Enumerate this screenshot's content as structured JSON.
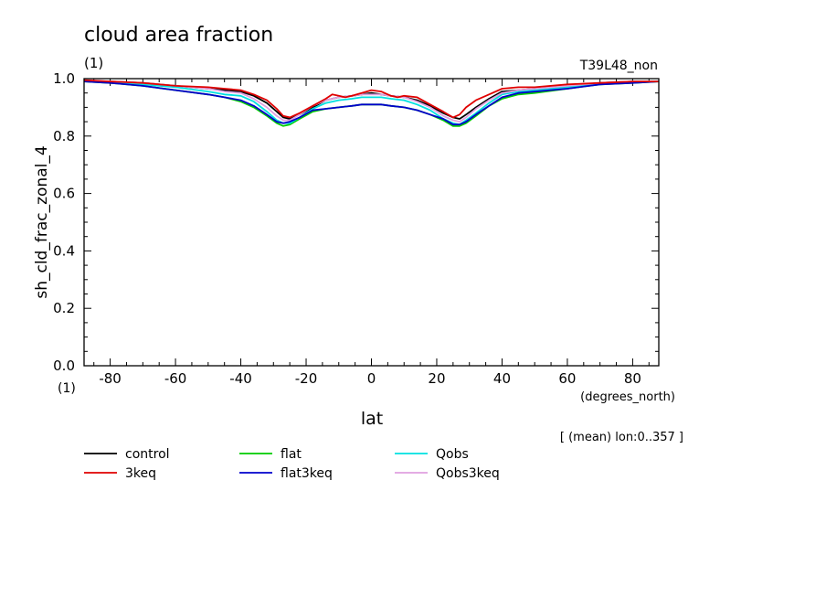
{
  "chart_data": {
    "type": "line",
    "title": "cloud area fraction",
    "title_units": "(1)",
    "run_label": "T39L48_non",
    "ylabel": "sh_cld_frac_zonal_4",
    "y_units": "(1)",
    "xlabel": "lat",
    "x_units": "(degrees_north)",
    "note": "[ (mean) lon:0..357 ]",
    "xlim": [
      -88,
      88
    ],
    "ylim": [
      0.0,
      1.0
    ],
    "x_ticks": [
      "-80",
      "-60",
      "-40",
      "-20",
      "0",
      "20",
      "40",
      "60",
      "80"
    ],
    "y_ticks": [
      "0.0",
      "0.2",
      "0.4",
      "0.6",
      "0.8",
      "1.0"
    ],
    "legend_position": "bottom",
    "series": [
      {
        "name": "control",
        "color": "#000000",
        "x": [
          -88,
          -80,
          -70,
          -60,
          -50,
          -45,
          -40,
          -36,
          -32,
          -29,
          -27,
          -25,
          -22,
          -18,
          -14,
          -10,
          -6,
          -3,
          0,
          3,
          6,
          10,
          14,
          18,
          22,
          25,
          27,
          29,
          32,
          36,
          40,
          45,
          50,
          60,
          70,
          80,
          88
        ],
        "y": [
          0.99,
          0.99,
          0.985,
          0.975,
          0.965,
          0.96,
          0.955,
          0.94,
          0.915,
          0.885,
          0.865,
          0.86,
          0.875,
          0.9,
          0.925,
          0.935,
          0.94,
          0.945,
          0.95,
          0.945,
          0.94,
          0.935,
          0.925,
          0.905,
          0.88,
          0.865,
          0.86,
          0.875,
          0.9,
          0.93,
          0.955,
          0.96,
          0.965,
          0.975,
          0.985,
          0.99,
          0.99
        ]
      },
      {
        "name": "3keq",
        "color": "#e00000",
        "x": [
          -88,
          -80,
          -70,
          -60,
          -50,
          -45,
          -40,
          -36,
          -32,
          -29,
          -27,
          -25,
          -22,
          -18,
          -14,
          -12,
          -10,
          -8,
          -6,
          -3,
          0,
          3,
          6,
          8,
          10,
          14,
          18,
          22,
          25,
          27,
          29,
          32,
          36,
          40,
          45,
          50,
          60,
          70,
          80,
          88
        ],
        "y": [
          0.995,
          0.99,
          0.985,
          0.975,
          0.97,
          0.965,
          0.96,
          0.945,
          0.925,
          0.895,
          0.87,
          0.865,
          0.88,
          0.905,
          0.93,
          0.945,
          0.94,
          0.935,
          0.94,
          0.95,
          0.96,
          0.955,
          0.94,
          0.935,
          0.94,
          0.935,
          0.91,
          0.885,
          0.865,
          0.875,
          0.9,
          0.925,
          0.945,
          0.965,
          0.97,
          0.97,
          0.98,
          0.985,
          0.99,
          0.99
        ]
      },
      {
        "name": "flat",
        "color": "#00cc00",
        "x": [
          -88,
          -80,
          -70,
          -60,
          -50,
          -45,
          -40,
          -36,
          -32,
          -29,
          -27,
          -25,
          -22,
          -18,
          -14,
          -10,
          -6,
          -3,
          0,
          3,
          6,
          10,
          14,
          18,
          22,
          25,
          27,
          29,
          32,
          36,
          40,
          45,
          50,
          60,
          70,
          80,
          88
        ],
        "y": [
          0.99,
          0.985,
          0.975,
          0.96,
          0.945,
          0.935,
          0.92,
          0.9,
          0.87,
          0.845,
          0.835,
          0.84,
          0.86,
          0.885,
          0.895,
          0.9,
          0.905,
          0.91,
          0.91,
          0.91,
          0.905,
          0.9,
          0.89,
          0.875,
          0.855,
          0.835,
          0.835,
          0.845,
          0.87,
          0.905,
          0.93,
          0.945,
          0.95,
          0.965,
          0.98,
          0.985,
          0.99
        ]
      },
      {
        "name": "flat3keq",
        "color": "#0000cc",
        "x": [
          -88,
          -80,
          -70,
          -60,
          -50,
          -45,
          -40,
          -36,
          -32,
          -29,
          -27,
          -25,
          -22,
          -18,
          -14,
          -10,
          -6,
          -3,
          0,
          3,
          6,
          10,
          14,
          18,
          22,
          25,
          27,
          29,
          32,
          36,
          40,
          45,
          50,
          60,
          70,
          80,
          88
        ],
        "y": [
          0.99,
          0.985,
          0.975,
          0.96,
          0.945,
          0.935,
          0.925,
          0.905,
          0.875,
          0.85,
          0.845,
          0.85,
          0.865,
          0.89,
          0.895,
          0.9,
          0.905,
          0.91,
          0.91,
          0.91,
          0.905,
          0.9,
          0.89,
          0.875,
          0.86,
          0.84,
          0.84,
          0.85,
          0.875,
          0.905,
          0.935,
          0.95,
          0.955,
          0.965,
          0.98,
          0.985,
          0.99
        ]
      },
      {
        "name": "Qobs",
        "color": "#00e0e0",
        "x": [
          -88,
          -80,
          -70,
          -60,
          -50,
          -45,
          -40,
          -36,
          -32,
          -29,
          -27,
          -25,
          -22,
          -18,
          -14,
          -10,
          -6,
          -3,
          0,
          3,
          6,
          10,
          14,
          18,
          22,
          25,
          27,
          29,
          32,
          36,
          40,
          45,
          50,
          60,
          70,
          80,
          88
        ],
        "y": [
          0.99,
          0.99,
          0.98,
          0.97,
          0.955,
          0.945,
          0.94,
          0.92,
          0.885,
          0.855,
          0.845,
          0.845,
          0.865,
          0.895,
          0.915,
          0.925,
          0.93,
          0.935,
          0.935,
          0.935,
          0.93,
          0.925,
          0.91,
          0.89,
          0.86,
          0.845,
          0.84,
          0.855,
          0.88,
          0.915,
          0.945,
          0.955,
          0.96,
          0.97,
          0.98,
          0.99,
          0.99
        ]
      },
      {
        "name": "Qobs3keq",
        "color": "#e0a0e0",
        "x": [
          -88,
          -80,
          -70,
          -60,
          -50,
          -45,
          -40,
          -36,
          -32,
          -29,
          -27,
          -25,
          -22,
          -18,
          -14,
          -10,
          -6,
          -3,
          0,
          3,
          6,
          10,
          14,
          18,
          22,
          25,
          27,
          29,
          32,
          36,
          40,
          45,
          50,
          60,
          70,
          80,
          88
        ],
        "y": [
          0.995,
          0.99,
          0.985,
          0.975,
          0.965,
          0.955,
          0.95,
          0.93,
          0.9,
          0.87,
          0.855,
          0.855,
          0.875,
          0.905,
          0.925,
          0.935,
          0.94,
          0.945,
          0.945,
          0.945,
          0.94,
          0.935,
          0.92,
          0.9,
          0.87,
          0.855,
          0.85,
          0.865,
          0.895,
          0.925,
          0.95,
          0.96,
          0.965,
          0.975,
          0.985,
          0.99,
          0.99
        ]
      }
    ]
  }
}
